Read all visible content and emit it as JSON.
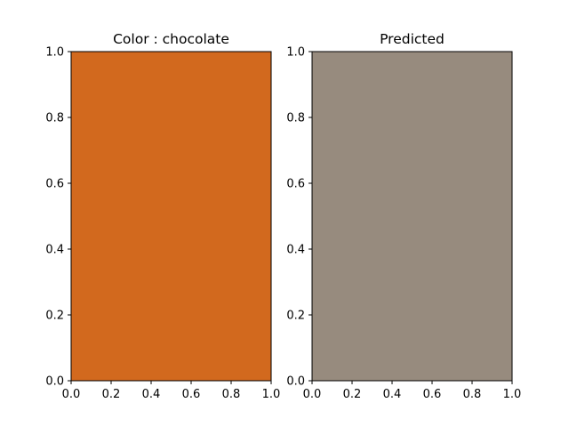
{
  "chart_data": [
    {
      "type": "heatmap",
      "title": "Color : chocolate",
      "fill_color": "#d2691e",
      "xlim": [
        0,
        1
      ],
      "ylim": [
        0,
        1
      ],
      "x_ticks": [
        "0.0",
        "0.2",
        "0.4",
        "0.6",
        "0.8",
        "1.0"
      ],
      "y_ticks": [
        "0.0",
        "0.2",
        "0.4",
        "0.6",
        "0.8",
        "1.0"
      ],
      "grid": false
    },
    {
      "type": "heatmap",
      "title": "Predicted",
      "fill_color": "#978b7e",
      "xlim": [
        0,
        1
      ],
      "ylim": [
        0,
        1
      ],
      "x_ticks": [
        "0.0",
        "0.2",
        "0.4",
        "0.6",
        "0.8",
        "1.0"
      ],
      "y_ticks": [
        "0.0",
        "0.2",
        "0.4",
        "0.6",
        "0.8",
        "1.0"
      ],
      "grid": false
    }
  ]
}
